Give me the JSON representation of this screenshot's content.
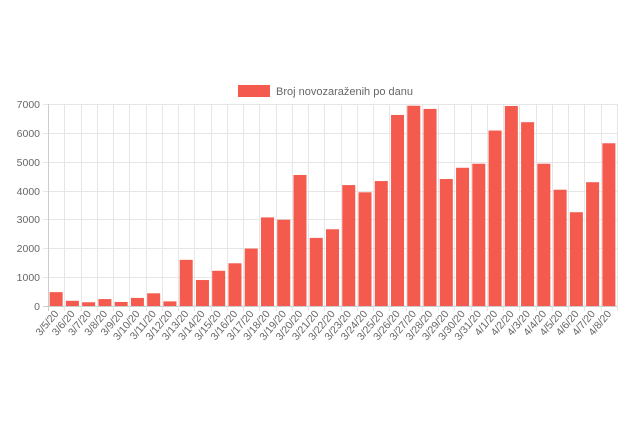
{
  "chart_data": {
    "type": "bar",
    "title": "",
    "xlabel": "",
    "ylabel": "",
    "ylim": [
      0,
      7000
    ],
    "yticks": [
      0,
      1000,
      2000,
      3000,
      4000,
      5000,
      6000,
      7000
    ],
    "grid": true,
    "legend_position": "top-center",
    "categories": [
      "3/5/20",
      "3/6/20",
      "3/7/20",
      "3/8/20",
      "3/9/20",
      "3/10/20",
      "3/11/20",
      "3/12/20",
      "3/13/20",
      "3/14/20",
      "3/15/20",
      "3/16/20",
      "3/17/20",
      "3/18/20",
      "3/19/20",
      "3/20/20",
      "3/21/20",
      "3/22/20",
      "3/23/20",
      "3/24/20",
      "3/25/20",
      "3/26/20",
      "3/27/20",
      "3/28/20",
      "3/29/20",
      "3/30/20",
      "3/31/20",
      "4/1/20",
      "4/2/20",
      "4/3/20",
      "4/4/20",
      "4/5/20",
      "4/6/20",
      "4/7/20",
      "4/8/20"
    ],
    "series": [
      {
        "name": "Broj novozaraženih po danu",
        "color": "#f55a4e",
        "values": [
          480,
          180,
          130,
          240,
          140,
          280,
          440,
          160,
          1600,
          900,
          1220,
          1480,
          1990,
          3070,
          2990,
          4540,
          2360,
          2660,
          4190,
          3940,
          4330,
          6620,
          6940,
          6830,
          4400,
          4790,
          4930,
          6080,
          6930,
          6370,
          4930,
          4030,
          3250,
          4290,
          5640
        ]
      }
    ]
  }
}
